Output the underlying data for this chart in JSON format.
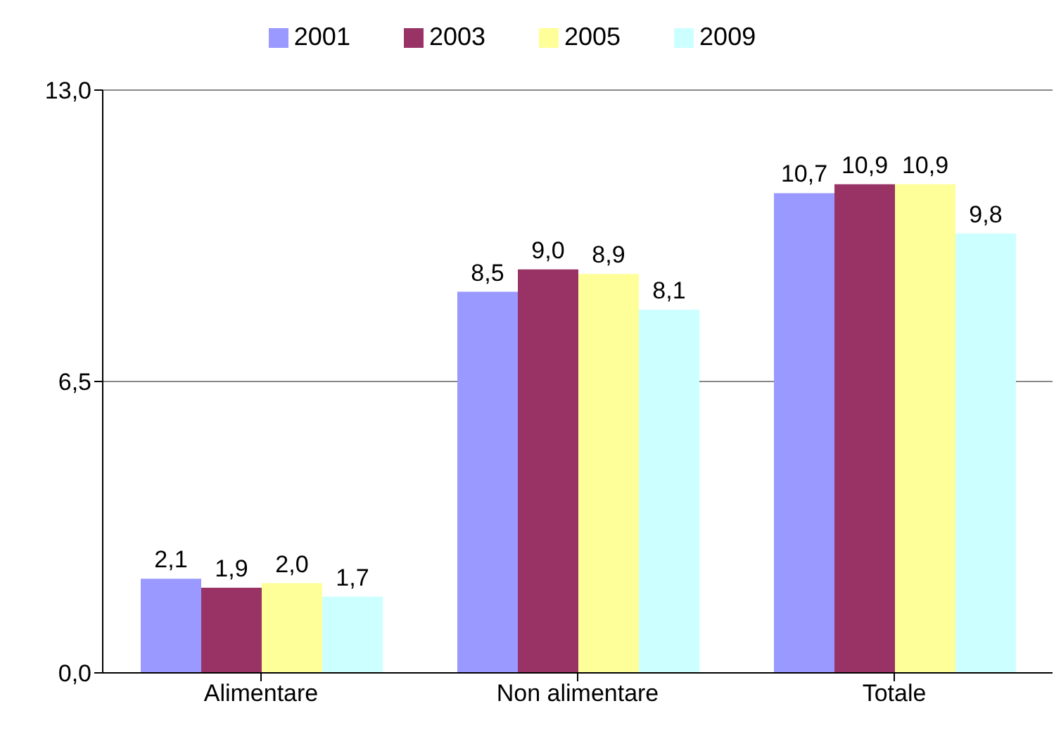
{
  "chart_data": {
    "type": "bar",
    "categories": [
      "Alimentare",
      "Non alimentare",
      "Totale"
    ],
    "series": [
      {
        "name": "2001",
        "color": "#9999ff",
        "values": [
          2.1,
          8.5,
          10.7
        ],
        "value_labels": [
          "2,1",
          "8,5",
          "10,7"
        ]
      },
      {
        "name": "2003",
        "color": "#993366",
        "values": [
          1.9,
          9.0,
          10.9
        ],
        "value_labels": [
          "1,9",
          "9,0",
          "10,9"
        ]
      },
      {
        "name": "2005",
        "color": "#ffff99",
        "values": [
          2.0,
          8.9,
          10.9
        ],
        "value_labels": [
          "2,0",
          "8,9",
          "10,9"
        ]
      },
      {
        "name": "2009",
        "color": "#ccffff",
        "values": [
          1.7,
          8.1,
          9.8
        ],
        "value_labels": [
          "1,7",
          "8,1",
          "9,8"
        ]
      }
    ],
    "ylim": [
      0,
      13
    ],
    "yticks": [
      {
        "value": 0,
        "label": "0,0"
      },
      {
        "value": 6.5,
        "label": "6,5"
      },
      {
        "value": 13,
        "label": "13,0"
      }
    ],
    "grid": "y",
    "legend": "top"
  }
}
